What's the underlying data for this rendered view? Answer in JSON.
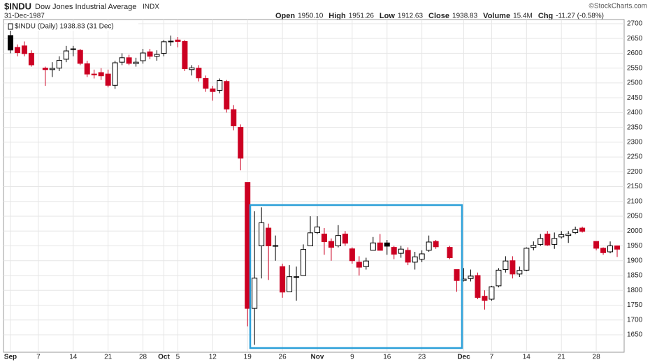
{
  "chart_data": {
    "type": "candlestick",
    "title": "$INDU",
    "subtitle": "Dow Jones Industrial Average",
    "exchange": "INDX",
    "date": "31-Dec-1987",
    "quote": [
      {
        "label": "Open",
        "value": "1950.10"
      },
      {
        "label": "High",
        "value": "1951.26"
      },
      {
        "label": "Low",
        "value": "1912.63"
      },
      {
        "label": "Close",
        "value": "1938.83"
      },
      {
        "label": "Volume",
        "value": "15.4M"
      },
      {
        "label": "Chg",
        "value": "-11.27 (-0.58%)"
      }
    ],
    "source": "©StockCharts.com",
    "legend": "$INDU (Daily) 1938.83 (31 Dec)",
    "x": [
      "1987-09-01",
      "1987-09-02",
      "1987-09-03",
      "1987-09-04",
      "1987-09-08",
      "1987-09-09",
      "1987-09-10",
      "1987-09-11",
      "1987-09-14",
      "1987-09-15",
      "1987-09-16",
      "1987-09-17",
      "1987-09-18",
      "1987-09-21",
      "1987-09-22",
      "1987-09-23",
      "1987-09-24",
      "1987-09-25",
      "1987-09-28",
      "1987-09-29",
      "1987-09-30",
      "1987-10-01",
      "1987-10-02",
      "1987-10-05",
      "1987-10-06",
      "1987-10-07",
      "1987-10-08",
      "1987-10-09",
      "1987-10-12",
      "1987-10-13",
      "1987-10-14",
      "1987-10-15",
      "1987-10-16",
      "1987-10-19",
      "1987-10-20",
      "1987-10-21",
      "1987-10-22",
      "1987-10-23",
      "1987-10-26",
      "1987-10-27",
      "1987-10-28",
      "1987-10-29",
      "1987-10-30",
      "1987-11-02",
      "1987-11-03",
      "1987-11-04",
      "1987-11-05",
      "1987-11-06",
      "1987-11-09",
      "1987-11-10",
      "1987-11-11",
      "1987-11-12",
      "1987-11-13",
      "1987-11-16",
      "1987-11-17",
      "1987-11-18",
      "1987-11-19",
      "1987-11-20",
      "1987-11-23",
      "1987-11-24",
      "1987-11-25",
      "1987-11-27",
      "1987-11-30",
      "1987-12-01",
      "1987-12-02",
      "1987-12-03",
      "1987-12-04",
      "1987-12-07",
      "1987-12-08",
      "1987-12-09",
      "1987-12-10",
      "1987-12-11",
      "1987-12-14",
      "1987-12-15",
      "1987-12-16",
      "1987-12-17",
      "1987-12-18",
      "1987-12-21",
      "1987-12-22",
      "1987-12-23",
      "1987-12-24",
      "1987-12-28",
      "1987-12-29",
      "1987-12-30",
      "1987-12-31"
    ],
    "open": [
      2660,
      2620,
      2625,
      2600,
      2550,
      2545,
      2550,
      2580,
      2615,
      2610,
      2565,
      2530,
      2535,
      2530,
      2492,
      2570,
      2585,
      2565,
      2575,
      2605,
      2590,
      2600,
      2640,
      2645,
      2640,
      2545,
      2550,
      2515,
      2480,
      2475,
      2505,
      2410,
      2350,
      2164,
      1739,
      1950,
      2010,
      1950,
      1880,
      1795,
      1846,
      1850,
      1950,
      1995,
      1990,
      1965,
      1950,
      1990,
      1940,
      1895,
      1880,
      1935,
      1960,
      1960,
      1945,
      1925,
      1935,
      1895,
      1905,
      1935,
      1965,
      1945,
      1870,
      1833,
      1840,
      1850,
      1780,
      1770,
      1815,
      1870,
      1900,
      1855,
      1868,
      1945,
      1955,
      1990,
      1955,
      1980,
      1985,
      1995,
      2010,
      1965,
      1942,
      1930,
      1950.1
    ],
    "high": [
      2680,
      2630,
      2640,
      2610,
      2555,
      2570,
      2590,
      2625,
      2625,
      2615,
      2575,
      2545,
      2550,
      2545,
      2575,
      2600,
      2595,
      2585,
      2615,
      2615,
      2610,
      2645,
      2660,
      2655,
      2645,
      2560,
      2560,
      2525,
      2490,
      2515,
      2510,
      2425,
      2360,
      2164,
      2067,
      2080,
      2025,
      1985,
      1890,
      1885,
      1880,
      1955,
      2050,
      2050,
      2010,
      1975,
      2020,
      2000,
      1945,
      1915,
      1910,
      1980,
      1990,
      1970,
      1950,
      1950,
      1945,
      1930,
      1935,
      1985,
      1970,
      1950,
      1870,
      1875,
      1870,
      1860,
      1800,
      1815,
      1875,
      1915,
      1915,
      1880,
      1945,
      1965,
      1990,
      2000,
      1995,
      2000,
      2000,
      2015,
      2015,
      1965,
      1945,
      1965,
      1951.26
    ],
    "low": [
      2600,
      2590,
      2590,
      2555,
      2490,
      2520,
      2540,
      2570,
      2590,
      2560,
      2520,
      2515,
      2510,
      2485,
      2480,
      2560,
      2560,
      2555,
      2565,
      2580,
      2575,
      2590,
      2625,
      2620,
      2540,
      2525,
      2505,
      2470,
      2440,
      2465,
      2400,
      2340,
      2205,
      1678,
      1616,
      1840,
      1835,
      1900,
      1775,
      1795,
      1765,
      1850,
      1950,
      1990,
      1920,
      1900,
      1945,
      1950,
      1890,
      1850,
      1870,
      1935,
      1940,
      1920,
      1905,
      1910,
      1885,
      1870,
      1895,
      1930,
      1940,
      1905,
      1795,
      1830,
      1830,
      1770,
      1735,
      1765,
      1810,
      1860,
      1840,
      1845,
      1865,
      1935,
      1950,
      1950,
      1940,
      1975,
      1960,
      1990,
      1995,
      1935,
      1920,
      1925,
      1912.63
    ],
    "close": [
      2611,
      2602,
      2599,
      2561,
      2545,
      2549,
      2576,
      2608,
      2613,
      2566,
      2530,
      2527,
      2524,
      2492,
      2568,
      2585,
      2566,
      2570,
      2601,
      2590,
      2596,
      2639,
      2641,
      2640,
      2548,
      2551,
      2517,
      2482,
      2471,
      2508,
      2412,
      2355,
      2246,
      1739,
      1841,
      2028,
      1950,
      1951,
      1794,
      1846,
      1846,
      1938,
      1994,
      2014,
      1964,
      1945,
      1985,
      1959,
      1900,
      1878,
      1899,
      1960,
      1935,
      1949,
      1922,
      1939,
      1895,
      1913,
      1923,
      1963,
      1947,
      1910,
      1833,
      1838,
      1848,
      1776,
      1766,
      1812,
      1868,
      1899,
      1855,
      1867,
      1942,
      1952,
      1975,
      1953,
      1975,
      1988,
      1990,
      2005,
      1999,
      1942,
      1927,
      1950,
      1938.83
    ],
    "colors": {
      "up": "#000000",
      "down": "#cc0022",
      "hollow": "#ffffff",
      "annotation": "#2a9fd8"
    },
    "xlim": [
      "1987-08-31",
      "1988-01-01"
    ],
    "xticks": [
      {
        "value": "1987-09-01",
        "label": "Sep"
      },
      {
        "value": "1987-09-07",
        "label": "7"
      },
      {
        "value": "1987-09-14",
        "label": "14"
      },
      {
        "value": "1987-09-21",
        "label": "21"
      },
      {
        "value": "1987-09-28",
        "label": "28"
      },
      {
        "value": "1987-10-01",
        "label": "Oct"
      },
      {
        "value": "1987-10-05",
        "label": "5"
      },
      {
        "value": "1987-10-12",
        "label": "12"
      },
      {
        "value": "1987-10-19",
        "label": "19"
      },
      {
        "value": "1987-10-26",
        "label": "26"
      },
      {
        "value": "1987-11-02",
        "label": "Nov"
      },
      {
        "value": "1987-11-09",
        "label": "9"
      },
      {
        "value": "1987-11-16",
        "label": "16"
      },
      {
        "value": "1987-11-23",
        "label": "23"
      },
      {
        "value": "1987-12-01",
        "label": "Dec"
      },
      {
        "value": "1987-12-07",
        "label": "7"
      },
      {
        "value": "1987-12-14",
        "label": "14"
      },
      {
        "value": "1987-12-21",
        "label": "21"
      },
      {
        "value": "1987-12-28",
        "label": "28"
      }
    ],
    "ylim": [
      1591,
      2714
    ],
    "yticks": [
      1650,
      1700,
      1750,
      1800,
      1850,
      1900,
      1950,
      2000,
      2050,
      2100,
      2150,
      2200,
      2250,
      2300,
      2350,
      2400,
      2450,
      2500,
      2550,
      2600,
      2650,
      2700
    ],
    "grid": true
  }
}
